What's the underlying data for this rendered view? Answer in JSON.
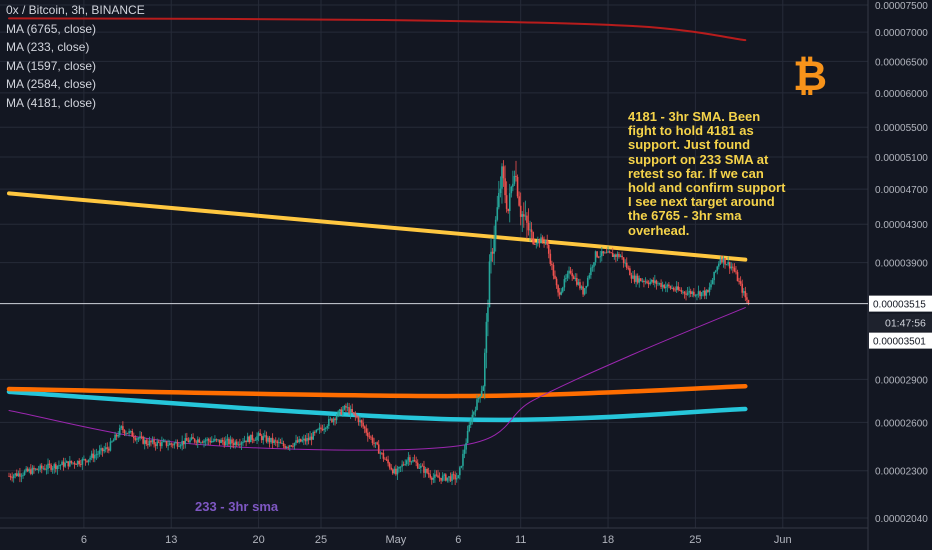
{
  "legend": {
    "title": "0x / Bitcoin, 3h, BINANCE",
    "items": [
      "MA (6765, close)",
      "MA (233, close)",
      "MA (1597, close)",
      "MA (2584, close)",
      "MA (4181, close)"
    ]
  },
  "annotations": {
    "note": "4181 - 3hr SMA. Been fight to hold 4181 as support. Just found support on 233 SMA at retest so far.  If we can hold and confirm support I see next target around the 6765 - 3hr sma overhead.",
    "sma_label": "233 - 3hr sma",
    "btc_symbol": "₿"
  },
  "colors": {
    "background": "#131722",
    "grid": "#262b38",
    "text": "#d1d4dc",
    "up_candle": "#26a69a",
    "down_candle": "#ef5350",
    "ma_6765": "#b71c1c",
    "ma_233": "#9c27b0",
    "ma_1597": "#ff6d00",
    "ma_2584": "#26c6da",
    "ma_4181": "#ffc740",
    "note_text": "#f5d34a",
    "btc_logo": "#f7931a"
  },
  "chart_data": {
    "type": "candlestick",
    "title": "0x / Bitcoin, 3h, BINANCE",
    "price_scale_labels": [
      "0.00007500",
      "0.00007000",
      "0.00006500",
      "0.00006000",
      "0.00005500",
      "0.00005100",
      "0.00004700",
      "0.00004300",
      "0.00003900",
      "0.00002900",
      "0.00002600",
      "0.00002300",
      "0.00002040"
    ],
    "price_ticks": [
      7.5e-05,
      7e-05,
      6.5e-05,
      6e-05,
      5.5e-05,
      5.1e-05,
      4.7e-05,
      4.3e-05,
      3.9e-05,
      2.9e-05,
      2.6e-05,
      2.3e-05,
      2.04e-05
    ],
    "log_scale": true,
    "x_labels": [
      "6",
      "13",
      "20",
      "25",
      "May",
      "6",
      "11",
      "18",
      "25",
      "Jun"
    ],
    "current_price": {
      "label": "0.00003515",
      "value": 3.515e-05,
      "countdown": "01:47:56",
      "low_label": "0.00003501"
    },
    "moving_averages": [
      {
        "name": "MA (6765, close)",
        "color": "#b71c1c",
        "points": [
          [
            "Mar 31",
            7.25e-05
          ],
          [
            "Apr 30",
            7.22e-05
          ],
          [
            "May 20",
            7.11e-05
          ],
          [
            "May 29",
            6.86e-05
          ]
        ]
      },
      {
        "name": "MA (4181, close)",
        "color": "#ffc740",
        "points": [
          [
            "Mar 31",
            4.65e-05
          ],
          [
            "May 10",
            4.15e-05
          ],
          [
            "May 29",
            3.93e-05
          ]
        ]
      },
      {
        "name": "MA (2584, close)",
        "color": "#26c6da",
        "points": [
          [
            "Mar 31",
            2.81e-05
          ],
          [
            "May 6",
            2.62e-05
          ],
          [
            "May 29",
            2.69e-05
          ]
        ]
      },
      {
        "name": "MA (1597, close)",
        "color": "#ff6d00",
        "points": [
          [
            "Mar 31",
            2.83e-05
          ],
          [
            "May 6",
            2.78e-05
          ],
          [
            "May 29",
            2.85e-05
          ]
        ]
      },
      {
        "name": "MA (233, close)",
        "color": "#9c27b0",
        "points": [
          [
            "Mar 31",
            2.68e-05
          ],
          [
            "Apr 15",
            2.46e-05
          ],
          [
            "May 6",
            2.45e-05
          ],
          [
            "May 12",
            2.75e-05
          ],
          [
            "May 20",
            3.09e-05
          ],
          [
            "May 29",
            3.48e-05
          ]
        ]
      }
    ],
    "price_path": [
      [
        "Mar 31",
        2.27e-05
      ],
      [
        "Apr 3",
        2.32e-05
      ],
      [
        "Apr 6",
        2.36e-05
      ],
      [
        "Apr 8",
        2.44e-05
      ],
      [
        "Apr 9",
        2.56e-05
      ],
      [
        "Apr 11",
        2.47e-05
      ],
      [
        "Apr 13",
        2.46e-05
      ],
      [
        "Apr 15",
        2.49e-05
      ],
      [
        "Apr 18",
        2.47e-05
      ],
      [
        "Apr 20",
        2.51e-05
      ],
      [
        "Apr 22",
        2.45e-05
      ],
      [
        "Apr 24",
        2.49e-05
      ],
      [
        "Apr 26",
        2.63e-05
      ],
      [
        "Apr 27",
        2.7e-05
      ],
      [
        "Apr 28",
        2.62e-05
      ],
      [
        "Apr 30",
        2.38e-05
      ],
      [
        "May 1",
        2.28e-05
      ],
      [
        "May 2",
        2.38e-05
      ],
      [
        "May 4",
        2.26e-05
      ],
      [
        "May 6",
        2.26e-05
      ],
      [
        "May 7",
        2.62e-05
      ],
      [
        "May 8",
        2.86e-05
      ],
      [
        "May 8.5",
        3.82e-05
      ],
      [
        "May 9",
        4.32e-05
      ],
      [
        "May 9.5",
        4.88e-05
      ],
      [
        "May 10",
        4.45e-05
      ],
      [
        "May 10.5",
        4.98e-05
      ],
      [
        "May 11",
        4.45e-05
      ],
      [
        "May 12",
        4.12e-05
      ],
      [
        "May 13",
        4.13e-05
      ],
      [
        "May 14",
        3.6e-05
      ],
      [
        "May 15",
        3.82e-05
      ],
      [
        "May 16",
        3.62e-05
      ],
      [
        "May 17",
        3.98e-05
      ],
      [
        "May 18",
        3.98e-05
      ],
      [
        "May 19",
        3.97e-05
      ],
      [
        "May 20",
        3.75e-05
      ],
      [
        "May 22",
        3.7e-05
      ],
      [
        "May 24",
        3.62e-05
      ],
      [
        "May 26",
        3.61e-05
      ],
      [
        "May 27",
        3.95e-05
      ],
      [
        "May 28",
        3.85e-05
      ],
      [
        "May 29",
        3.57e-05
      ],
      [
        "May 29.3",
        3.515e-05
      ]
    ]
  }
}
